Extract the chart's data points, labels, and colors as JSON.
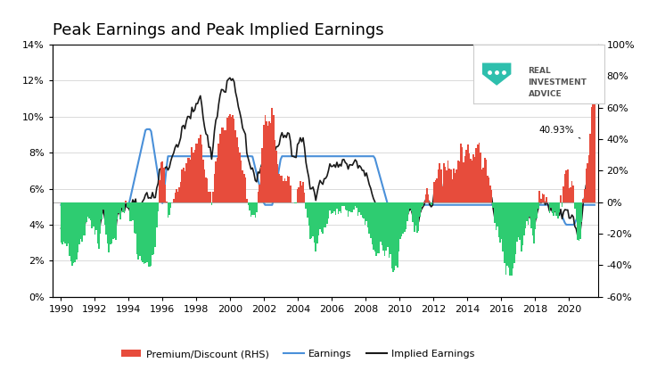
{
  "title": "Peak Earnings and Peak Implied Earnings",
  "title_fontsize": 13,
  "background_color": "#ffffff",
  "left_ylim": [
    0.0,
    0.14
  ],
  "left_yticks": [
    0.0,
    0.02,
    0.04,
    0.06,
    0.08,
    0.1,
    0.12,
    0.14
  ],
  "left_yticklabels": [
    "0%",
    "2%",
    "4%",
    "6%",
    "8%",
    "10%",
    "12%",
    "14%"
  ],
  "right_ylim": [
    -0.6,
    1.0
  ],
  "right_yticks": [
    -0.6,
    -0.4,
    -0.2,
    0.0,
    0.2,
    0.4,
    0.6,
    0.8,
    1.0
  ],
  "right_yticklabels": [
    "-60%",
    "-40%",
    "-20%",
    "0%",
    "20%",
    "40%",
    "60%",
    "80%",
    "100%"
  ],
  "xlim": [
    1989.5,
    2021.7
  ],
  "xticks": [
    1990,
    1992,
    1994,
    1996,
    1998,
    2000,
    2002,
    2004,
    2006,
    2008,
    2010,
    2012,
    2014,
    2016,
    2018,
    2020
  ],
  "bar_color_pos": "#e74c3c",
  "bar_color_neg": "#2ecc71",
  "line_earnings_color": "#4a90d9",
  "line_implied_color": "#1a1a1a",
  "annotation_text": "40.93%",
  "logo_shield_color": "#2ebfad",
  "logo_text_color": "#555555"
}
